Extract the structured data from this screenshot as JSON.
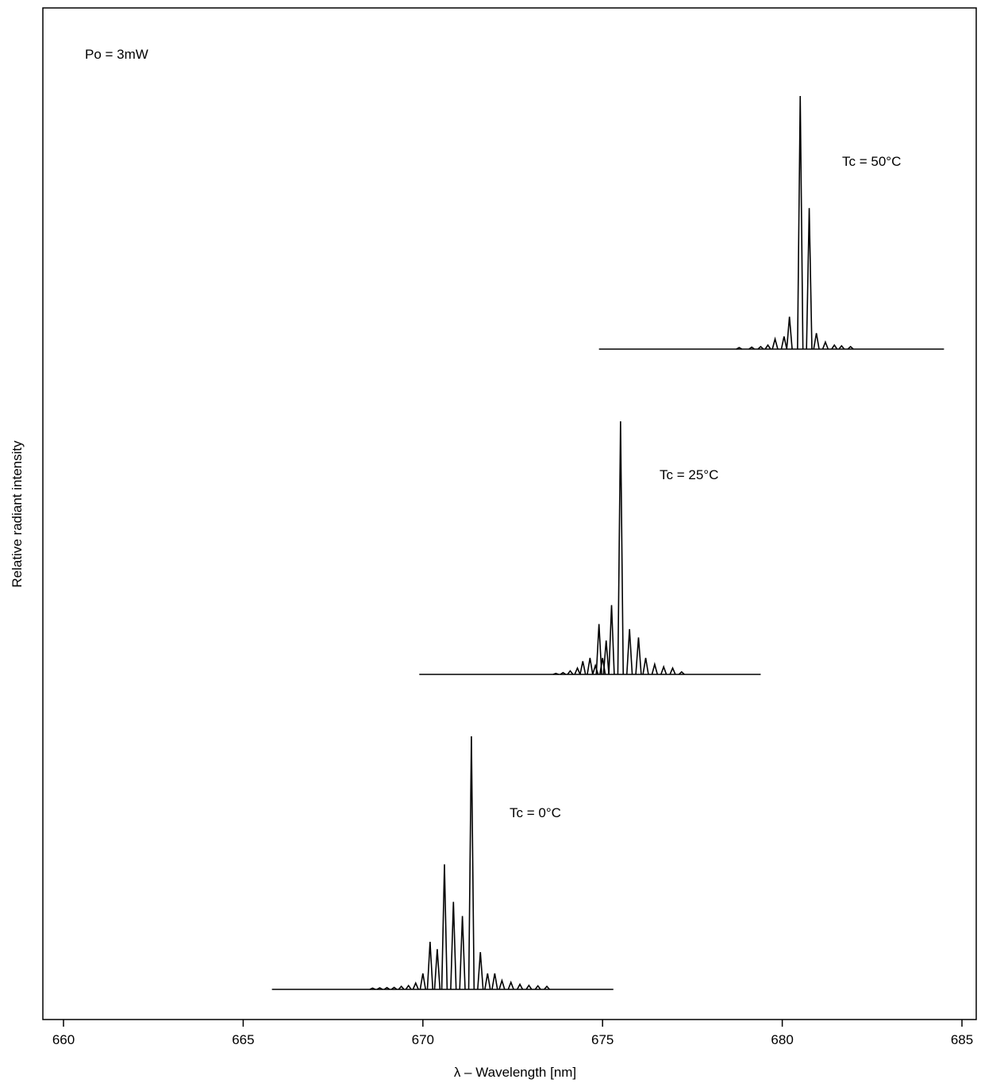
{
  "chart_data": {
    "type": "line",
    "title": "",
    "xlabel": "λ – Wavelength [nm]",
    "ylabel": "Relative radiant intensity",
    "xlim": [
      659.5,
      685.5
    ],
    "xticks": [
      660,
      665,
      670,
      675,
      680,
      685
    ],
    "ylim": [
      0,
      1
    ],
    "grid": false,
    "legend": "none",
    "annotation": "Po = 3mW",
    "series": [
      {
        "name": "Tc = 0°C",
        "baseline": 0.0,
        "x_range": [
          665.8,
          675.3
        ],
        "peaks": [
          [
            668.6,
            0.005
          ],
          [
            668.8,
            0.006
          ],
          [
            669.0,
            0.007
          ],
          [
            669.2,
            0.008
          ],
          [
            669.4,
            0.012
          ],
          [
            669.6,
            0.015
          ],
          [
            669.8,
            0.025
          ],
          [
            670.0,
            0.063
          ],
          [
            670.2,
            0.188
          ],
          [
            670.4,
            0.159
          ],
          [
            670.6,
            0.494
          ],
          [
            670.85,
            0.346
          ],
          [
            671.1,
            0.29
          ],
          [
            671.35,
            1.0
          ],
          [
            671.6,
            0.147
          ],
          [
            671.8,
            0.063
          ],
          [
            672.0,
            0.063
          ],
          [
            672.2,
            0.035
          ],
          [
            672.45,
            0.028
          ],
          [
            672.7,
            0.02
          ],
          [
            672.95,
            0.016
          ],
          [
            673.2,
            0.014
          ],
          [
            673.45,
            0.012
          ]
        ]
      },
      {
        "name": "Tc = 25°C",
        "baseline": 0.0,
        "x_range": [
          669.9,
          679.4
        ],
        "peaks": [
          [
            673.7,
            0.004
          ],
          [
            673.9,
            0.007
          ],
          [
            674.1,
            0.014
          ],
          [
            674.3,
            0.025
          ],
          [
            674.45,
            0.052
          ],
          [
            674.65,
            0.065
          ],
          [
            674.8,
            0.035
          ],
          [
            674.9,
            0.199
          ],
          [
            675.0,
            0.065
          ],
          [
            675.1,
            0.134
          ],
          [
            675.25,
            0.274
          ],
          [
            675.5,
            1.0
          ],
          [
            675.75,
            0.179
          ],
          [
            676.0,
            0.146
          ],
          [
            676.2,
            0.065
          ],
          [
            676.45,
            0.04
          ],
          [
            676.7,
            0.03
          ],
          [
            676.95,
            0.025
          ],
          [
            677.2,
            0.01
          ]
        ]
      },
      {
        "name": "Tc = 50°C",
        "baseline": 0.0,
        "x_range": [
          674.9,
          684.5
        ],
        "peaks": [
          [
            678.8,
            0.006
          ],
          [
            679.15,
            0.008
          ],
          [
            679.4,
            0.01
          ],
          [
            679.6,
            0.016
          ],
          [
            679.8,
            0.04
          ],
          [
            680.05,
            0.05
          ],
          [
            680.2,
            0.128
          ],
          [
            680.5,
            1.0
          ],
          [
            680.75,
            0.557
          ],
          [
            680.95,
            0.063
          ],
          [
            681.2,
            0.028
          ],
          [
            681.45,
            0.016
          ],
          [
            681.65,
            0.013
          ],
          [
            681.9,
            0.01
          ]
        ]
      }
    ]
  }
}
